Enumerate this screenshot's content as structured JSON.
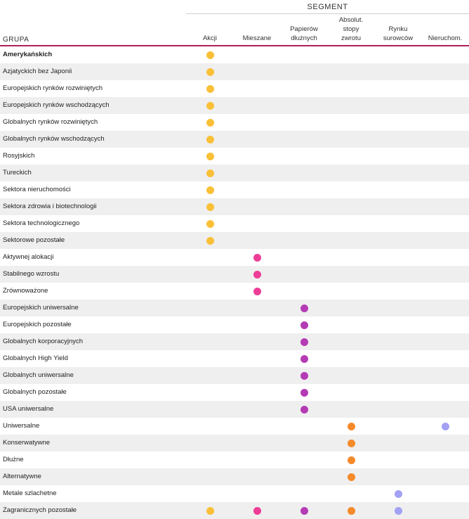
{
  "header": {
    "segment_label": "SEGMENT",
    "group_label": "GRUPA"
  },
  "columns": [
    {
      "key": "akcji",
      "label": "Akcji",
      "color": "#f9c037"
    },
    {
      "key": "mieszane",
      "label": "Mieszane",
      "color": "#ee3d96"
    },
    {
      "key": "papierow",
      "label": "Papierów\ndłużnych",
      "color": "#b43bb4"
    },
    {
      "key": "absolut",
      "label": "Absolut.\nstopy\nzwrotu",
      "color": "#f58a2a"
    },
    {
      "key": "surowcow",
      "label": "Rynku\nsurowców",
      "color": "#a3a1f5"
    },
    {
      "key": "nieruchom",
      "label": "Nieruchom.",
      "color": "#a3a1f5"
    }
  ],
  "rows": [
    {
      "label": "Amerykańskich",
      "bold": true,
      "segments": [
        "akcji"
      ]
    },
    {
      "label": "Azjatyckich bez Japonii",
      "segments": [
        "akcji"
      ]
    },
    {
      "label": "Europejskich rynków rozwiniętych",
      "segments": [
        "akcji"
      ]
    },
    {
      "label": "Europejskich rynków wschodzących",
      "segments": [
        "akcji"
      ]
    },
    {
      "label": "Globalnych rynków rozwiniętych",
      "segments": [
        "akcji"
      ]
    },
    {
      "label": "Globalnych rynków wschodzących",
      "segments": [
        "akcji"
      ]
    },
    {
      "label": "Rosyjskich",
      "segments": [
        "akcji"
      ]
    },
    {
      "label": "Tureckich",
      "segments": [
        "akcji"
      ]
    },
    {
      "label": "Sektora nieruchomości",
      "segments": [
        "akcji"
      ]
    },
    {
      "label": "Sektora zdrowia i biotechnologii",
      "segments": [
        "akcji"
      ]
    },
    {
      "label": "Sektora technologicznego",
      "segments": [
        "akcji"
      ]
    },
    {
      "label": "Sektorowe pozostałe",
      "segments": [
        "akcji"
      ]
    },
    {
      "label": "Aktywnej alokacji",
      "segments": [
        "mieszane"
      ]
    },
    {
      "label": "Stabilnego wzrostu",
      "segments": [
        "mieszane"
      ]
    },
    {
      "label": "Zrównoważone",
      "segments": [
        "mieszane"
      ]
    },
    {
      "label": "Europejskich uniwersalne",
      "segments": [
        "papierow"
      ]
    },
    {
      "label": "Europejskich pozostałe",
      "segments": [
        "papierow"
      ]
    },
    {
      "label": "Globalnych korporacyjnych",
      "segments": [
        "papierow"
      ]
    },
    {
      "label": "Globalnych High Yield",
      "segments": [
        "papierow"
      ]
    },
    {
      "label": "Globalnych uniwersalne",
      "segments": [
        "papierow"
      ]
    },
    {
      "label": "Globalnych pozostałe",
      "segments": [
        "papierow"
      ]
    },
    {
      "label": "USA uniwersalne",
      "segments": [
        "papierow"
      ]
    },
    {
      "label": "Uniwersalne",
      "segments": [
        "absolut",
        "nieruchom"
      ]
    },
    {
      "label": "Konserwatywne",
      "segments": [
        "absolut"
      ]
    },
    {
      "label": "Dłużne",
      "segments": [
        "absolut"
      ]
    },
    {
      "label": "Alternatywne",
      "segments": [
        "absolut"
      ]
    },
    {
      "label": "Metale szlachetne",
      "segments": [
        "surowcow"
      ]
    },
    {
      "label": "Zagranicznych pozostałe",
      "segments": [
        "akcji",
        "mieszane",
        "papierow",
        "absolut",
        "surowcow"
      ]
    }
  ]
}
